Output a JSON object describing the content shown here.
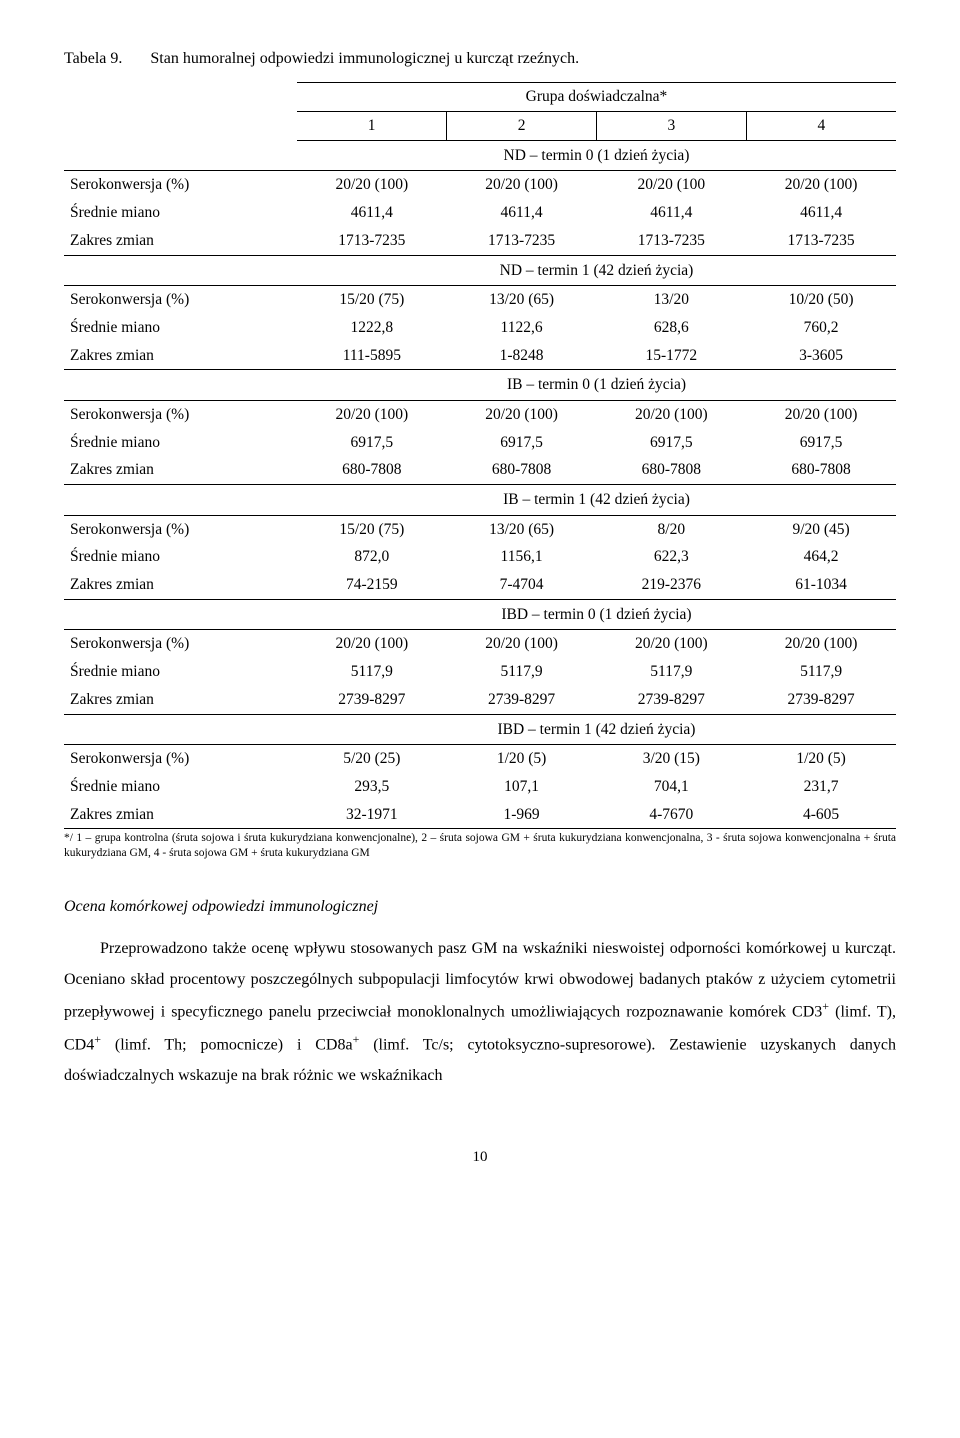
{
  "table": {
    "label": "Tabela 9.",
    "caption": "Stan humoralnej odpowiedzi immunologicznej u kurcząt rzeźnych.",
    "group_header": "Grupa doświadczalna*",
    "col_headers": [
      "1",
      "2",
      "3",
      "4"
    ],
    "rownames": {
      "sero": "Serokonwersja (%)",
      "mean": "Średnie miano",
      "range": "Zakres zmian"
    },
    "sections": [
      {
        "title": "ND – termin 0 (1 dzień życia)",
        "rows": {
          "sero": [
            "20/20 (100)",
            "20/20 (100)",
            "20/20 (100",
            "20/20 (100)"
          ],
          "mean": [
            "4611,4",
            "4611,4",
            "4611,4",
            "4611,4"
          ],
          "range": [
            "1713-7235",
            "1713-7235",
            "1713-7235",
            "1713-7235"
          ]
        }
      },
      {
        "title": "ND – termin 1 (42 dzień życia)",
        "rows": {
          "sero": [
            "15/20 (75)",
            "13/20 (65)",
            "13/20",
            "10/20 (50)"
          ],
          "mean": [
            "1222,8",
            "1122,6",
            "628,6",
            "760,2"
          ],
          "range": [
            "111-5895",
            "1-8248",
            "15-1772",
            "3-3605"
          ]
        }
      },
      {
        "title": "IB – termin 0 (1 dzień życia)",
        "rows": {
          "sero": [
            "20/20 (100)",
            "20/20 (100)",
            "20/20 (100)",
            "20/20 (100)"
          ],
          "mean": [
            "6917,5",
            "6917,5",
            "6917,5",
            "6917,5"
          ],
          "range": [
            "680-7808",
            "680-7808",
            "680-7808",
            "680-7808"
          ]
        }
      },
      {
        "title": "IB – termin 1 (42 dzień życia)",
        "rows": {
          "sero": [
            "15/20 (75)",
            "13/20 (65)",
            "8/20",
            "9/20 (45)"
          ],
          "mean": [
            "872,0",
            "1156,1",
            "622,3",
            "464,2"
          ],
          "range": [
            "74-2159",
            "7-4704",
            "219-2376",
            "61-1034"
          ]
        }
      },
      {
        "title": "IBD – termin 0 (1 dzień życia)",
        "rows": {
          "sero": [
            "20/20 (100)",
            "20/20 (100)",
            "20/20 (100)",
            "20/20 (100)"
          ],
          "mean": [
            "5117,9",
            "5117,9",
            "5117,9",
            "5117,9"
          ],
          "range": [
            "2739-8297",
            "2739-8297",
            "2739-8297",
            "2739-8297"
          ]
        }
      },
      {
        "title": "IBD – termin 1 (42 dzień życia)",
        "rows": {
          "sero": [
            "5/20 (25)",
            "1/20 (5)",
            "3/20 (15)",
            "1/20 (5)"
          ],
          "mean": [
            "293,5",
            "107,1",
            "704,1",
            "231,7"
          ],
          "range": [
            "32-1971",
            "1-969",
            "4-7670",
            "4-605"
          ]
        }
      }
    ],
    "footnote": "*/ 1 – grupa kontrolna (śruta sojowa i śruta kukurydziana konwencjonalne), 2 – śruta sojowa GM + śruta kukurydziana konwencjonalna, 3 - śruta sojowa konwencjonalna + śruta kukurydziana GM, 4 - śruta sojowa GM + śruta kukurydziana GM"
  },
  "section_heading": "Ocena komórkowej odpowiedzi immunologicznej",
  "paragraph_parts": {
    "p1": "Przeprowadzono także ocenę wpływu stosowanych pasz GM na wskaźniki nieswoistej odporności komórkowej u kurcząt. Oceniano skład procentowy poszczególnych subpopulacji limfocytów krwi obwodowej badanych ptaków z użyciem cytometrii przepływowej i specyficznego panelu przeciwciał monoklonalnych umożliwiających rozpoznawanie komórek CD3",
    "s1": "+",
    "p2": " (limf. T), CD4",
    "s2": "+",
    "p3": " (limf. Th; pomocnicze) i CD8a",
    "s3": "+",
    "p4": " (limf. Tc/s; cytotoksyczno-supresorowe). Zestawienie uzyskanych danych doświadczalnych wskazuje na brak różnic we wskaźnikach"
  },
  "page_number": "10"
}
